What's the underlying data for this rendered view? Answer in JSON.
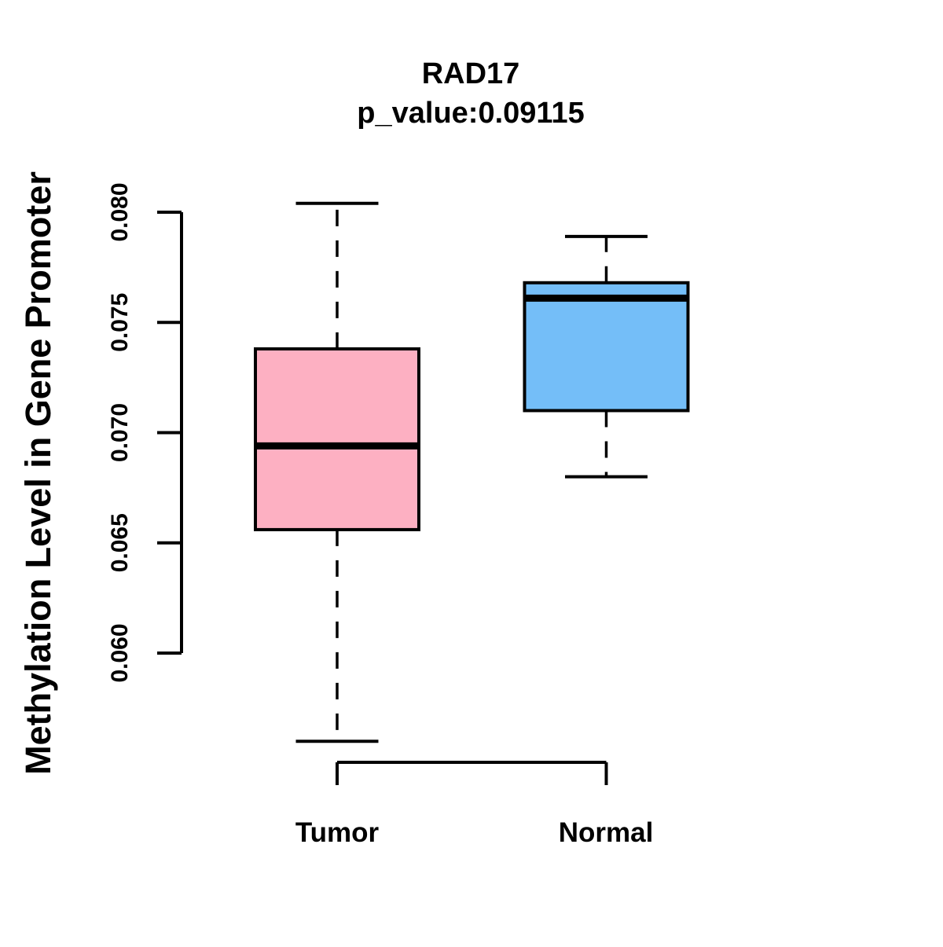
{
  "title": {
    "gene": "RAD17",
    "subtitle": "p_value:0.09115"
  },
  "chart_data": {
    "type": "boxplot",
    "title": "RAD17",
    "subtitle": "p_value:0.09115",
    "xlabel": "",
    "ylabel": "Methylation Level in Gene Promoter",
    "categories": [
      "Tumor",
      "Normal"
    ],
    "ylim": [
      0.06,
      0.08
    ],
    "yticks": [
      0.06,
      0.065,
      0.07,
      0.075,
      0.08
    ],
    "ytick_labels": [
      "0.060",
      "0.065",
      "0.070",
      "0.075",
      "0.080"
    ],
    "grid": false,
    "legend": "none",
    "series": [
      {
        "name": "Tumor",
        "color": "#FDB0C2",
        "whisker_low": 0.056,
        "q1": 0.0656,
        "median": 0.0694,
        "q3": 0.0738,
        "whisker_high": 0.0804
      },
      {
        "name": "Normal",
        "color": "#74BEF8",
        "whisker_low": 0.068,
        "q1": 0.071,
        "median": 0.0761,
        "q3": 0.0768,
        "whisker_high": 0.0789
      }
    ]
  },
  "colors": {
    "tumor_box": "#FDB0C2",
    "normal_box": "#74BEF8",
    "stroke": "#000000",
    "background": "#FFFFFF"
  }
}
